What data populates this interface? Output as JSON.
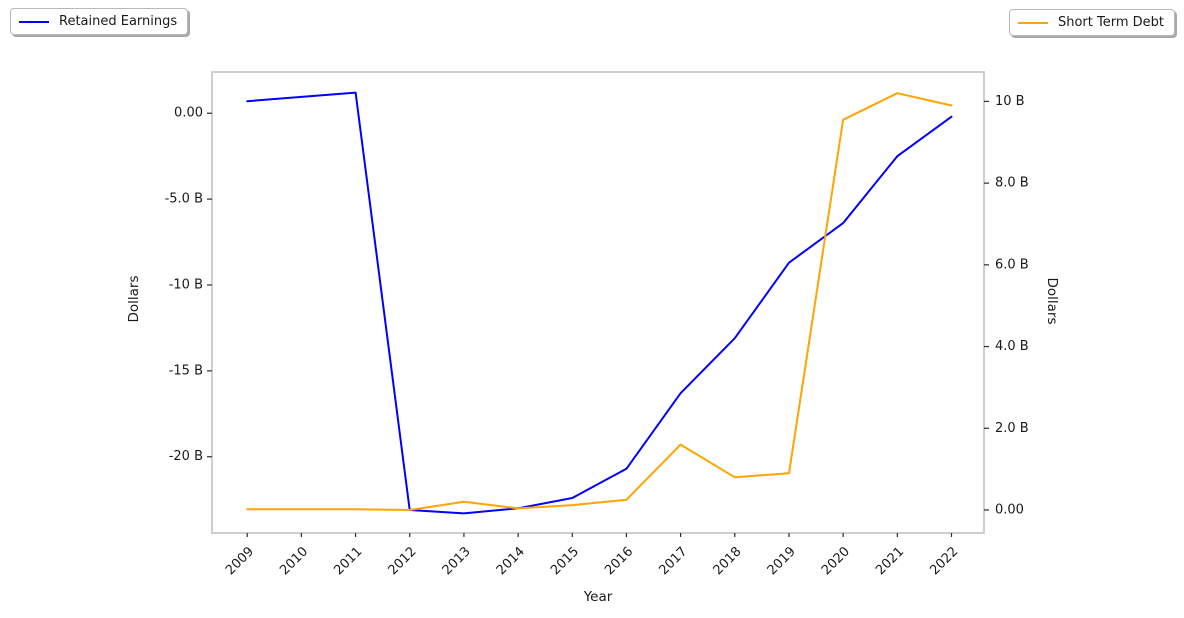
{
  "figure": {
    "legend_left": {
      "label": "Retained Earnings"
    },
    "legend_right": {
      "label": "Short Term Debt"
    }
  },
  "chart_data": {
    "type": "line",
    "title": "",
    "x_label": "Year",
    "x_categories": [
      "2009",
      "2010",
      "2011",
      "2012",
      "2013",
      "2014",
      "2015",
      "2016",
      "2017",
      "2018",
      "2019",
      "2020",
      "2021",
      "2022"
    ],
    "x_lim_index": [
      -0.65,
      13.6
    ],
    "y_left": {
      "label": "Dollars",
      "lim": [
        -24.44,
        2.4
      ],
      "ticks": [
        {
          "value": 0,
          "label": "0.00"
        },
        {
          "value": -5,
          "label": "-5.0 B"
        },
        {
          "value": -10,
          "label": "-10 B"
        },
        {
          "value": -15,
          "label": "-15 B"
        },
        {
          "value": -20,
          "label": "-20 B"
        }
      ]
    },
    "y_right": {
      "label": "Dollars",
      "lim": [
        -0.563,
        10.72
      ],
      "ticks": [
        {
          "value": 10,
          "label": "10 B"
        },
        {
          "value": 8,
          "label": "8.0 B"
        },
        {
          "value": 6,
          "label": "6.0 B"
        },
        {
          "value": 4,
          "label": "4.0 B"
        },
        {
          "value": 2,
          "label": "2.0 B"
        },
        {
          "value": 0,
          "label": "0.00"
        }
      ]
    },
    "grid": false,
    "legend_position": [
      "upper-left-outside",
      "upper-right-outside"
    ],
    "series": [
      {
        "name": "Retained Earnings",
        "color": "#0000ff",
        "y_axis": "left",
        "unit": "billion USD",
        "values": [
          0.7,
          0.95,
          1.2,
          -23.1,
          -23.3,
          -23.0,
          -22.4,
          -20.7,
          -16.3,
          -13.1,
          -8.7,
          -6.4,
          -2.5,
          -0.2
        ]
      },
      {
        "name": "Short Term Debt",
        "color": "#ffa500",
        "y_axis": "right",
        "unit": "billion USD",
        "values": [
          0.02,
          0.02,
          0.02,
          0.0,
          0.2,
          0.04,
          0.12,
          0.25,
          1.6,
          0.8,
          0.9,
          9.55,
          10.2,
          9.9
        ]
      }
    ]
  }
}
